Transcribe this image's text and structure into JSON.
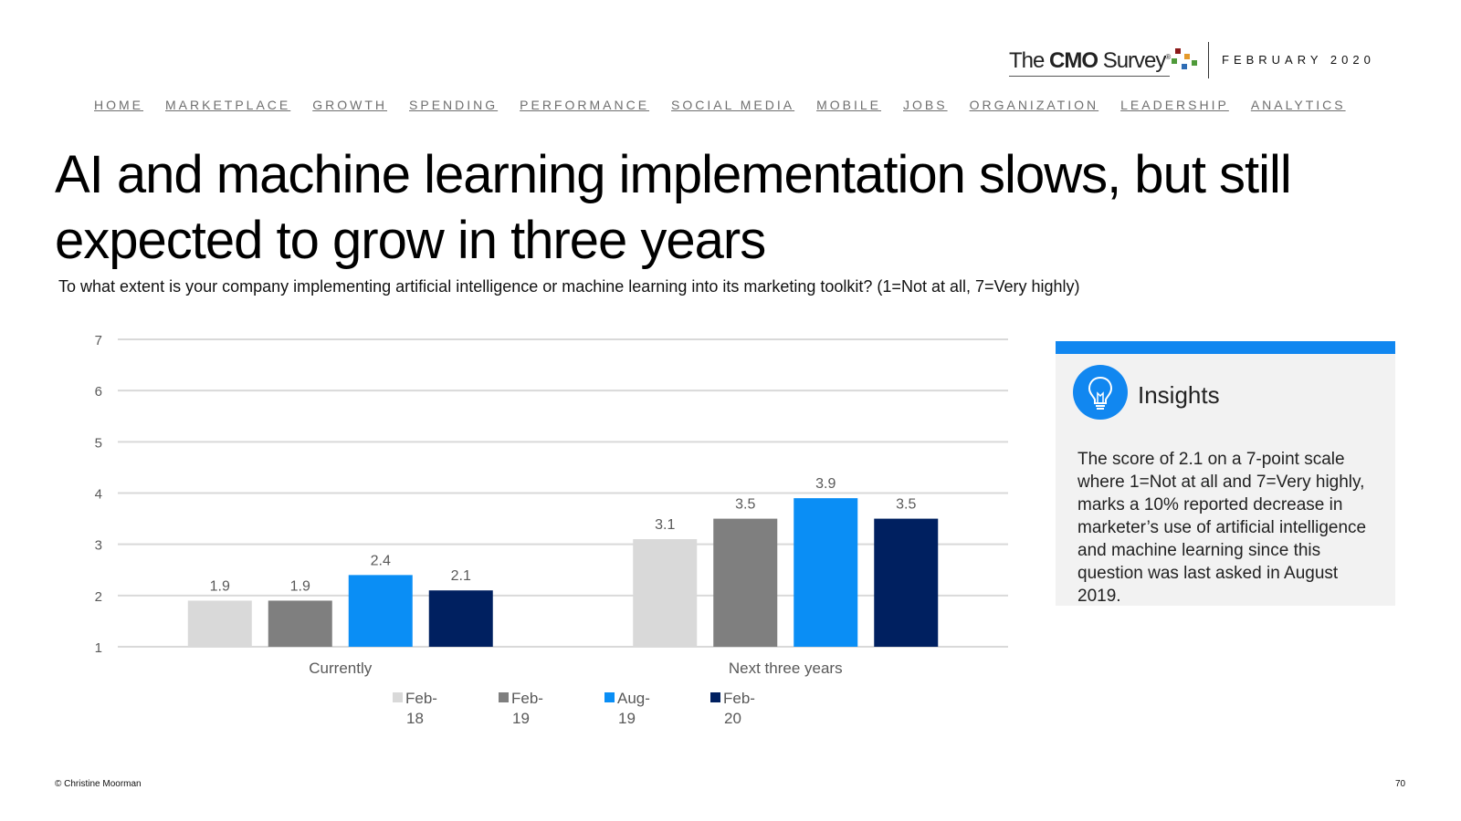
{
  "header": {
    "logo_pre": "The ",
    "logo_bold": "CMO",
    "logo_post": " Survey",
    "logo_mark": "®",
    "date": "FEBRUARY 2020"
  },
  "nav": [
    "HOME",
    "MARKETPLACE",
    "GROWTH",
    "SPENDING",
    "PERFORMANCE",
    "SOCIAL MEDIA",
    "MOBILE",
    "JOBS",
    "ORGANIZATION",
    "LEADERSHIP",
    "ANALYTICS"
  ],
  "title": "AI and machine learning implementation slows, but still expected to grow in three years",
  "subtitle": "To what extent is your company implementing artificial intelligence or machine learning into its marketing toolkit? (1=Not at all, 7=Very highly)",
  "chart_data": {
    "type": "bar",
    "categories": [
      "Currently",
      "Next three years"
    ],
    "series": [
      {
        "name": "Feb-18",
        "values": [
          1.9,
          3.1
        ],
        "color": "#d9d9d9"
      },
      {
        "name": "Feb-19",
        "values": [
          1.9,
          3.5
        ],
        "color": "#7f7f7f"
      },
      {
        "name": "Aug-19",
        "values": [
          2.4,
          3.9
        ],
        "color": "#0a8ef5"
      },
      {
        "name": "Feb-20",
        "values": [
          2.1,
          3.5
        ],
        "color": "#002060"
      }
    ],
    "yticks": [
      1,
      2,
      3,
      4,
      5,
      6,
      7
    ],
    "ylim": [
      1,
      7
    ],
    "legend_lines": [
      [
        "Feb-",
        "18"
      ],
      [
        "Feb-",
        "19"
      ],
      [
        "Aug-",
        "19"
      ],
      [
        "Feb-",
        "20"
      ]
    ]
  },
  "insights": {
    "title": "Insights",
    "body": "The score of 2.1 on a 7-point scale where 1=Not at all and 7=Very highly, marks a 10% reported decrease in marketer’s use of artificial intelligence and machine learning since this question was last asked in August 2019."
  },
  "footer": {
    "copyright": "© Christine Moorman",
    "page": "70"
  }
}
